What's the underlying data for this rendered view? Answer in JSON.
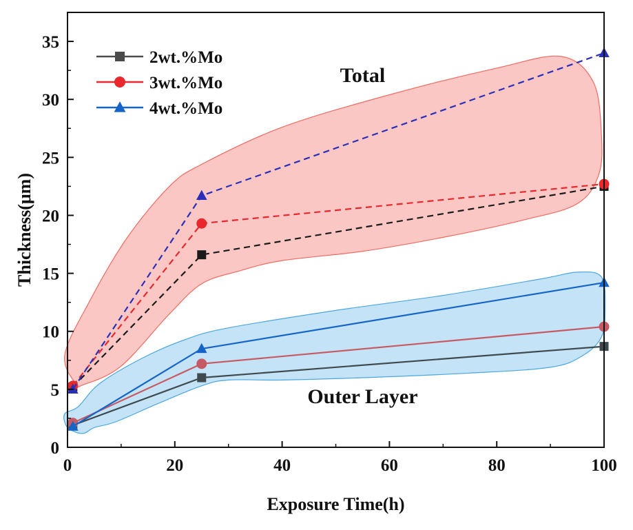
{
  "chart_data": {
    "type": "line",
    "xlabel": "Exposure Time(h)",
    "ylabel": "Thickness(μm)",
    "xlim": [
      0,
      100
    ],
    "ylim": [
      0,
      37.5
    ],
    "xticks": [
      0,
      20,
      40,
      60,
      80,
      100
    ],
    "yticks": [
      0,
      5,
      10,
      15,
      20,
      25,
      30,
      35
    ],
    "xtick_labels": [
      "0",
      "20",
      "40",
      "60",
      "80",
      "100"
    ],
    "ytick_labels": [
      "0",
      "5",
      "10",
      "15",
      "20",
      "25",
      "30",
      "35"
    ],
    "grid": false,
    "legend_position": "top-left",
    "x": [
      1,
      25,
      100
    ],
    "series": [
      {
        "name": "2wt.%Mo",
        "group": "Total",
        "values": [
          5.2,
          16.6,
          22.5
        ],
        "color": "#1a1a1a",
        "line": "dashed",
        "marker": "square",
        "in_legend": true
      },
      {
        "name": "3wt.%Mo",
        "group": "Total",
        "values": [
          5.3,
          19.3,
          22.7
        ],
        "color": "#e8282d",
        "line": "dashed",
        "marker": "circle",
        "in_legend": true
      },
      {
        "name": "4wt.%Mo",
        "group": "Total",
        "values": [
          5.0,
          21.7,
          34.0
        ],
        "color": "#2b2fb8",
        "line": "dashed",
        "marker": "triangle",
        "in_legend": true
      },
      {
        "name": "2wt.%Mo",
        "group": "Outer Layer",
        "values": [
          1.9,
          6.0,
          8.7
        ],
        "color": "#3f4a4e",
        "line": "solid",
        "marker": "square",
        "in_legend": false
      },
      {
        "name": "3wt.%Mo",
        "group": "Outer Layer",
        "values": [
          2.1,
          7.2,
          10.4
        ],
        "color": "#c65a63",
        "line": "solid",
        "marker": "circle",
        "in_legend": false
      },
      {
        "name": "4wt.%Mo",
        "group": "Outer Layer",
        "values": [
          1.8,
          8.5,
          14.2
        ],
        "color": "#1565c8",
        "line": "solid",
        "marker": "triangle",
        "in_legend": false
      }
    ],
    "legend": [
      {
        "label": "2wt.%Mo",
        "color": "#4a4a4a",
        "marker": "square"
      },
      {
        "label": "3wt.%Mo",
        "color": "#e8282d",
        "marker": "circle"
      },
      {
        "label": "4wt.%Mo",
        "color": "#1565c8",
        "marker": "triangle"
      }
    ],
    "annotations": [
      {
        "text": "Total",
        "x": 55,
        "y": 31.5
      },
      {
        "text": "Outer Layer",
        "x": 55,
        "y": 3.8
      }
    ],
    "regions": [
      {
        "label": "Total",
        "fill": "#f7a9a4",
        "stroke": "#ef6b60"
      },
      {
        "label": "Outer Layer",
        "fill": "#a6d4f2",
        "stroke": "#4aa6e0"
      }
    ]
  }
}
